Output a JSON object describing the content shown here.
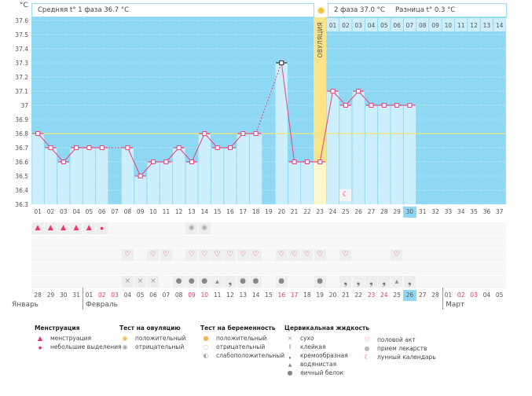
{
  "unit": "°C",
  "header": {
    "phase1_label": "Средняя t° 1 фаза 36.7 °C",
    "phase2_label": "2 фаза 37.0 °C",
    "diff_label": "Разница t° 0.3 °C",
    "ovulation_label": "ОВУЛЯЦИЯ"
  },
  "phase2_days": [
    "01",
    "02",
    "03",
    "04",
    "05",
    "06",
    "07",
    "08",
    "09",
    "10",
    "11",
    "12",
    "13",
    "14"
  ],
  "chart_data": {
    "type": "line",
    "ylim": [
      36.3,
      37.6
    ],
    "yticks": [
      "37.6",
      "37.5",
      "37.4",
      "37.3",
      "37.2",
      "37.1",
      "37",
      "36.9",
      "36.8",
      "36.7",
      "36.6",
      "36.5",
      "36.4",
      "36.3"
    ],
    "coverline": 36.8,
    "ovulation_day": 23,
    "highlight_day": 30,
    "days": [
      "01",
      "02",
      "03",
      "04",
      "05",
      "06",
      "07",
      "08",
      "09",
      "10",
      "11",
      "12",
      "13",
      "14",
      "15",
      "16",
      "17",
      "18",
      "19",
      "20",
      "21",
      "22",
      "23",
      "24",
      "25",
      "26",
      "27",
      "28",
      "29",
      "30",
      "31",
      "32",
      "33",
      "34",
      "35",
      "36",
      "37"
    ],
    "temps": [
      36.8,
      36.7,
      36.6,
      36.7,
      36.7,
      36.7,
      null,
      36.7,
      36.5,
      36.6,
      36.6,
      36.7,
      36.6,
      36.8,
      36.7,
      36.7,
      36.8,
      36.8,
      null,
      37.3,
      36.6,
      36.6,
      36.6,
      37.1,
      37.0,
      37.1,
      37.0,
      37.0,
      37.0,
      37.0,
      null,
      null,
      null,
      null,
      null,
      null,
      null
    ],
    "excluded_days": [
      20
    ]
  },
  "rows": {
    "menstruation": {
      "1": "heavy",
      "2": "heavy",
      "3": "heavy",
      "4": "heavy",
      "5": "heavy",
      "6": "light"
    },
    "ovulation_test": {
      "13": "negative",
      "14": "negative"
    },
    "sex": [
      8,
      10,
      11,
      13,
      14,
      15,
      16,
      17,
      18,
      20,
      21,
      22,
      23,
      25,
      29
    ],
    "cervical": {
      "8": "dry",
      "9": "dry",
      "10": "dry",
      "12": "eggwhite",
      "13": "eggwhite",
      "14": "eggwhite",
      "15": "watery",
      "16": "creamy",
      "17": "eggwhite",
      "18": "eggwhite",
      "20": "eggwhite",
      "23": "eggwhite",
      "25": "creamy",
      "26": "creamy",
      "27": "creamy",
      "28": "creamy",
      "29": "watery",
      "30": "creamy"
    },
    "lunar_day": 25
  },
  "dates": [
    "28",
    "29",
    "30",
    "31",
    "01",
    "02",
    "03",
    "04",
    "05",
    "06",
    "07",
    "08",
    "09",
    "10",
    "11",
    "12",
    "13",
    "14",
    "15",
    "16",
    "17",
    "18",
    "19",
    "20",
    "21",
    "22",
    "23",
    "24",
    "25",
    "26",
    "27",
    "28",
    "01",
    "02",
    "03",
    "04",
    "05"
  ],
  "weekend_idx": [
    5,
    6,
    12,
    13,
    19,
    20,
    26,
    27,
    33,
    34
  ],
  "months": {
    "jan": "Январь",
    "feb": "Февраль",
    "mar": "Март"
  },
  "legend": {
    "menstruation": {
      "title": "Менструация",
      "items": [
        "менструация",
        "небольшие выделения"
      ]
    },
    "ovulation_test": {
      "title": "Тест на овуляцию",
      "items": [
        "положительный",
        "отрицательный"
      ]
    },
    "pregnancy_test": {
      "title": "Тест на беременность",
      "items": [
        "положительный",
        "отрицательный",
        "слабоположительный"
      ]
    },
    "cervical": {
      "title": "Цервикальная жидкость",
      "items": [
        "сухо",
        "клейкая",
        "кремообразная",
        "водянистая",
        "яичный белок"
      ]
    },
    "other": {
      "items": [
        "половой акт",
        "прием лекарств",
        "лунный календарь"
      ]
    }
  },
  "colors": {
    "bg_blue": "#8fd8f4",
    "bar": "#cdeefb",
    "line": "#e8447a",
    "coverline": "#f4e27a",
    "ovulation": "#fbe38a",
    "red": "#ee3366"
  }
}
